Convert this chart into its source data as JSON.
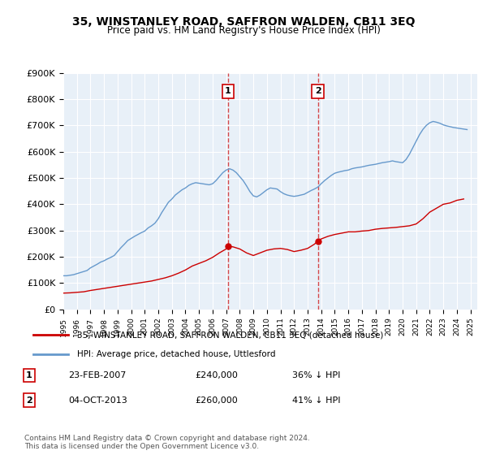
{
  "title": "35, WINSTANLEY ROAD, SAFFRON WALDEN, CB11 3EQ",
  "subtitle": "Price paid vs. HM Land Registry's House Price Index (HPI)",
  "xlabel": "",
  "ylabel": "",
  "ylim": [
    0,
    900000
  ],
  "yticks": [
    0,
    100000,
    200000,
    300000,
    400000,
    500000,
    600000,
    700000,
    800000,
    900000
  ],
  "ytick_labels": [
    "£0",
    "£100K",
    "£200K",
    "£300K",
    "£400K",
    "£500K",
    "£600K",
    "£700K",
    "£800K",
    "£900K"
  ],
  "xlim_start": 1995.0,
  "xlim_end": 2025.5,
  "background_color": "#ffffff",
  "plot_bg_color": "#e8f0f8",
  "grid_color": "#ffffff",
  "purchase1_x": 2007.14,
  "purchase1_y": 240000,
  "purchase1_label": "1",
  "purchase1_date": "23-FEB-2007",
  "purchase1_price": "£240,000",
  "purchase1_hpi": "36% ↓ HPI",
  "purchase2_x": 2013.75,
  "purchase2_y": 260000,
  "purchase2_label": "2",
  "purchase2_date": "04-OCT-2013",
  "purchase2_price": "£260,000",
  "purchase2_hpi": "41% ↓ HPI",
  "line_price_color": "#cc0000",
  "line_hpi_color": "#6699cc",
  "legend_price_label": "35, WINSTANLEY ROAD, SAFFRON WALDEN, CB11 3EQ (detached house)",
  "legend_hpi_label": "HPI: Average price, detached house, Uttlesford",
  "footer": "Contains HM Land Registry data © Crown copyright and database right 2024.\nThis data is licensed under the Open Government Licence v3.0.",
  "hpi_years": [
    1995.0,
    1995.25,
    1995.5,
    1995.75,
    1996.0,
    1996.25,
    1996.5,
    1996.75,
    1997.0,
    1997.25,
    1997.5,
    1997.75,
    1998.0,
    1998.25,
    1998.5,
    1998.75,
    1999.0,
    1999.25,
    1999.5,
    1999.75,
    2000.0,
    2000.25,
    2000.5,
    2000.75,
    2001.0,
    2001.25,
    2001.5,
    2001.75,
    2002.0,
    2002.25,
    2002.5,
    2002.75,
    2003.0,
    2003.25,
    2003.5,
    2003.75,
    2004.0,
    2004.25,
    2004.5,
    2004.75,
    2005.0,
    2005.25,
    2005.5,
    2005.75,
    2006.0,
    2006.25,
    2006.5,
    2006.75,
    2007.0,
    2007.25,
    2007.5,
    2007.75,
    2008.0,
    2008.25,
    2008.5,
    2008.75,
    2009.0,
    2009.25,
    2009.5,
    2009.75,
    2010.0,
    2010.25,
    2010.5,
    2010.75,
    2011.0,
    2011.25,
    2011.5,
    2011.75,
    2012.0,
    2012.25,
    2012.5,
    2012.75,
    2013.0,
    2013.25,
    2013.5,
    2013.75,
    2014.0,
    2014.25,
    2014.5,
    2014.75,
    2015.0,
    2015.25,
    2015.5,
    2015.75,
    2016.0,
    2016.25,
    2016.5,
    2016.75,
    2017.0,
    2017.25,
    2017.5,
    2017.75,
    2018.0,
    2018.25,
    2018.5,
    2018.75,
    2019.0,
    2019.25,
    2019.5,
    2019.75,
    2020.0,
    2020.25,
    2020.5,
    2020.75,
    2021.0,
    2021.25,
    2021.5,
    2021.75,
    2022.0,
    2022.25,
    2022.5,
    2022.75,
    2023.0,
    2023.25,
    2023.5,
    2023.75,
    2024.0,
    2024.25,
    2024.5,
    2024.75
  ],
  "hpi_values": [
    128000,
    128000,
    130000,
    132000,
    136000,
    140000,
    144000,
    148000,
    158000,
    165000,
    172000,
    180000,
    185000,
    192000,
    198000,
    205000,
    220000,
    235000,
    248000,
    262000,
    270000,
    278000,
    285000,
    292000,
    298000,
    310000,
    318000,
    328000,
    345000,
    368000,
    388000,
    408000,
    420000,
    435000,
    445000,
    455000,
    462000,
    472000,
    478000,
    482000,
    480000,
    478000,
    476000,
    474000,
    478000,
    490000,
    505000,
    520000,
    530000,
    535000,
    530000,
    520000,
    505000,
    490000,
    470000,
    448000,
    432000,
    428000,
    435000,
    445000,
    455000,
    462000,
    460000,
    458000,
    448000,
    440000,
    435000,
    432000,
    430000,
    432000,
    435000,
    438000,
    445000,
    452000,
    458000,
    465000,
    478000,
    490000,
    500000,
    510000,
    518000,
    522000,
    525000,
    528000,
    530000,
    535000,
    538000,
    540000,
    542000,
    545000,
    548000,
    550000,
    552000,
    555000,
    558000,
    560000,
    562000,
    565000,
    562000,
    560000,
    558000,
    570000,
    590000,
    615000,
    640000,
    665000,
    685000,
    700000,
    710000,
    715000,
    712000,
    708000,
    702000,
    698000,
    695000,
    692000,
    690000,
    688000,
    686000,
    684000
  ],
  "price_years": [
    1995.0,
    1995.5,
    1996.0,
    1996.5,
    1997.0,
    1997.5,
    1998.0,
    1998.5,
    1999.0,
    1999.5,
    2000.0,
    2000.5,
    2001.0,
    2001.5,
    2002.0,
    2002.5,
    2003.0,
    2003.5,
    2004.0,
    2004.5,
    2005.0,
    2005.5,
    2006.0,
    2006.5,
    2007.0,
    2007.14,
    2007.5,
    2008.0,
    2008.5,
    2009.0,
    2009.5,
    2010.0,
    2010.5,
    2011.0,
    2011.5,
    2012.0,
    2012.5,
    2013.0,
    2013.5,
    2013.75,
    2014.0,
    2014.5,
    2015.0,
    2015.5,
    2016.0,
    2016.5,
    2017.0,
    2017.5,
    2018.0,
    2018.5,
    2019.0,
    2019.5,
    2020.0,
    2020.5,
    2021.0,
    2021.5,
    2022.0,
    2022.5,
    2023.0,
    2023.5,
    2024.0,
    2024.5
  ],
  "price_values": [
    62000,
    63000,
    65000,
    67000,
    72000,
    76000,
    80000,
    84000,
    88000,
    92000,
    96000,
    100000,
    104000,
    108000,
    114000,
    120000,
    128000,
    138000,
    150000,
    165000,
    175000,
    185000,
    198000,
    215000,
    230000,
    240000,
    238000,
    230000,
    215000,
    205000,
    215000,
    225000,
    230000,
    232000,
    228000,
    220000,
    225000,
    232000,
    248000,
    260000,
    268000,
    278000,
    285000,
    290000,
    295000,
    295000,
    298000,
    300000,
    305000,
    308000,
    310000,
    312000,
    315000,
    318000,
    325000,
    345000,
    370000,
    385000,
    400000,
    405000,
    415000,
    420000
  ]
}
